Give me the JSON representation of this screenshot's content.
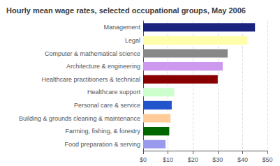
{
  "chart_data": {
    "type": "bar",
    "orientation": "horizontal",
    "title": "Hourly mean wage rates, selected occupational groups, May 2006",
    "categories": [
      "Food preparation & serving",
      "Farming, fishing, & forestry",
      "Building & grounds cleaning & maintenance",
      "Personal care & service",
      "Healthcare support",
      "Healthcare practitioners & technical",
      "Architecture & engineering",
      "Computer & mathematical science",
      "Legal",
      "Management"
    ],
    "values": [
      9.0,
      10.5,
      11.0,
      11.5,
      12.5,
      30.0,
      32.0,
      34.0,
      42.0,
      45.0
    ],
    "colors": [
      "#9999ee",
      "#006600",
      "#ffcc99",
      "#2255cc",
      "#ccffcc",
      "#880000",
      "#cc99ee",
      "#888888",
      "#ffffaa",
      "#1a237e"
    ],
    "xlim": [
      0,
      50
    ],
    "xticks": [
      {
        "value": 0,
        "label": "$0"
      },
      {
        "value": 10,
        "label": "$10"
      },
      {
        "value": 20,
        "label": "$20"
      },
      {
        "value": 30,
        "label": "$30"
      },
      {
        "value": 40,
        "label": "$40"
      },
      {
        "value": 50,
        "label": "$50"
      }
    ],
    "grid": true
  }
}
